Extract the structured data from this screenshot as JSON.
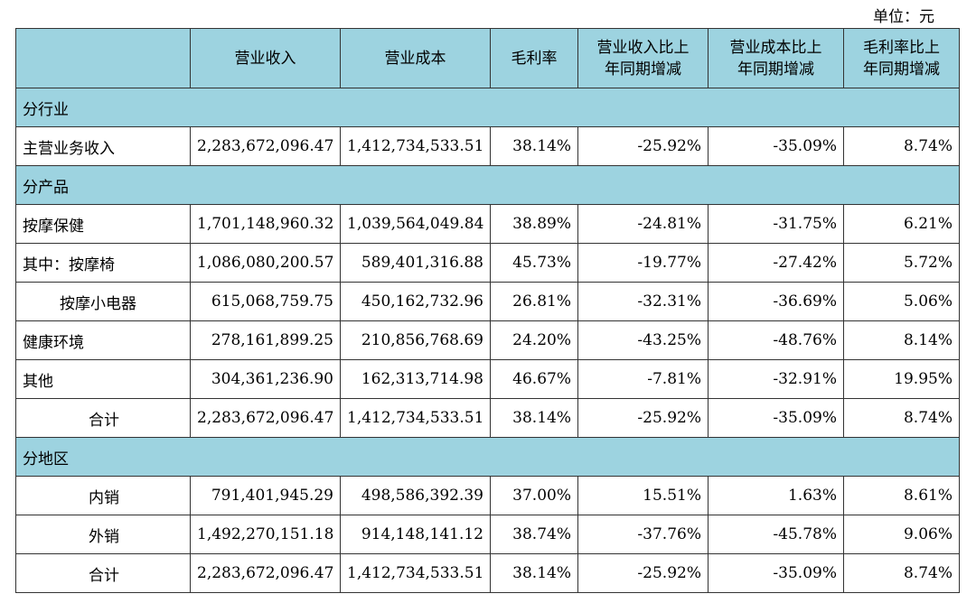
{
  "unit": "单位：元",
  "headers": [
    "",
    "营业收入",
    "营业成本",
    "毛利率",
    "营业收入比上年同期增减",
    "营业成本比上年同期增减",
    "毛利率比上年同期增减"
  ],
  "header_lines": [
    [
      ""
    ],
    [
      "营业收入"
    ],
    [
      "营业成本"
    ],
    [
      "毛利率"
    ],
    [
      "营业收入比上",
      "年同期增减"
    ],
    [
      "营业成本比上",
      "年同期增减"
    ],
    [
      "毛利率比上",
      "年同期增减"
    ]
  ],
  "rows": [
    {
      "type": "section",
      "label": "分行业"
    },
    {
      "type": "data",
      "style": "plain",
      "label": "主营业务收入",
      "values": [
        "2,283,672,096.47",
        "1,412,734,533.51",
        "38.14%",
        "-25.92%",
        "-35.09%",
        "8.74%"
      ]
    },
    {
      "type": "section",
      "label": "分产品"
    },
    {
      "type": "data",
      "style": "plain",
      "label": "按摩保健",
      "values": [
        "1,701,148,960.32",
        "1,039,564,049.84",
        "38.89%",
        "-24.81%",
        "-31.75%",
        "6.21%"
      ]
    },
    {
      "type": "data",
      "style": "plain",
      "label": "其中：按摩椅",
      "values": [
        "1,086,080,200.57",
        "589,401,316.88",
        "45.73%",
        "-19.77%",
        "-27.42%",
        "5.72%"
      ]
    },
    {
      "type": "data",
      "style": "sub",
      "label": "按摩小电器",
      "values": [
        "615,068,759.75",
        "450,162,732.96",
        "26.81%",
        "-32.31%",
        "-36.69%",
        "5.06%"
      ]
    },
    {
      "type": "data",
      "style": "plain",
      "label": "健康环境",
      "values": [
        "278,161,899.25",
        "210,856,768.69",
        "24.20%",
        "-43.25%",
        "-48.76%",
        "8.14%"
      ]
    },
    {
      "type": "data",
      "style": "plain",
      "label": "其他",
      "values": [
        "304,361,236.90",
        "162,313,714.98",
        "46.67%",
        "-7.81%",
        "-32.91%",
        "19.95%"
      ]
    },
    {
      "type": "data",
      "style": "total",
      "label": "合计",
      "values": [
        "2,283,672,096.47",
        "1,412,734,533.51",
        "38.14%",
        "-25.92%",
        "-35.09%",
        "8.74%"
      ]
    },
    {
      "type": "section",
      "label": "分地区"
    },
    {
      "type": "data",
      "style": "total",
      "label": "内销",
      "values": [
        "791,401,945.29",
        "498,586,392.39",
        "37.00%",
        "15.51%",
        "1.63%",
        "8.61%"
      ]
    },
    {
      "type": "data",
      "style": "total",
      "label": "外销",
      "values": [
        "1,492,270,151.18",
        "914,148,141.12",
        "38.74%",
        "-37.76%",
        "-45.78%",
        "9.06%"
      ]
    },
    {
      "type": "data",
      "style": "total",
      "label": "合计",
      "values": [
        "2,283,672,096.47",
        "1,412,734,533.51",
        "38.14%",
        "-25.92%",
        "-35.09%",
        "8.74%"
      ]
    }
  ]
}
